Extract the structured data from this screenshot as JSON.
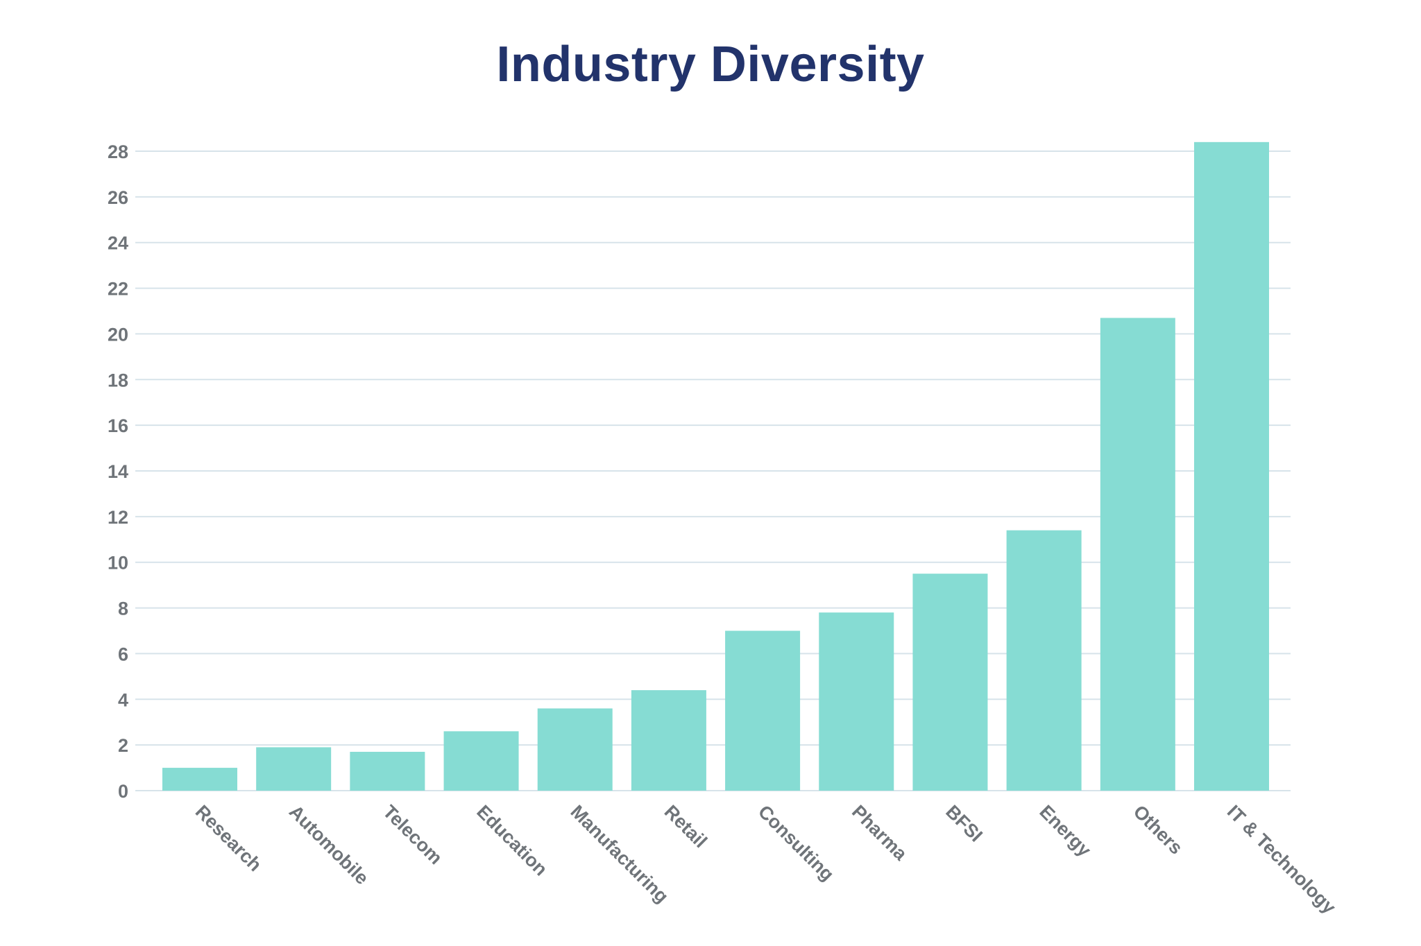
{
  "chart_data": {
    "type": "bar",
    "title": "Industry Diversity",
    "xlabel": "",
    "ylabel": "",
    "categories": [
      "Research",
      "Automobile",
      "Telecom",
      "Education",
      "Manufacturing",
      "Retail",
      "Consulting",
      "Pharma",
      "BFSI",
      "Energy",
      "Others",
      "IT & Technology"
    ],
    "values": [
      1.0,
      1.9,
      1.7,
      2.6,
      3.6,
      4.4,
      7.0,
      7.8,
      9.5,
      11.4,
      20.7,
      28.4
    ],
    "ylim": [
      0,
      28
    ],
    "yticks": [
      0,
      2,
      4,
      6,
      8,
      10,
      12,
      14,
      16,
      18,
      20,
      22,
      24,
      26,
      28
    ],
    "grid": true,
    "legend": "none",
    "bar_color": "#86dcd3",
    "grid_color": "#d7e3ea",
    "title_color": "#22336b",
    "tick_color": "#6f7479"
  }
}
